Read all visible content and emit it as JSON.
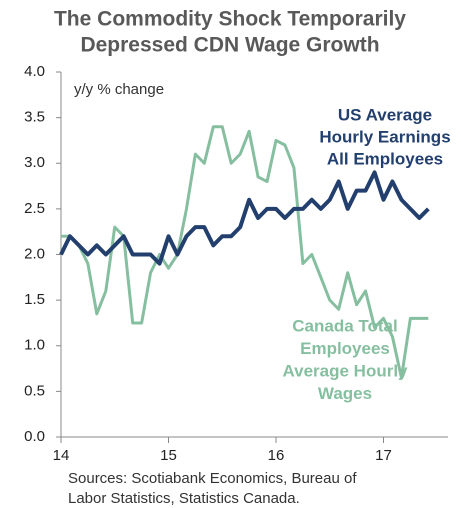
{
  "chart_data": {
    "type": "line",
    "title": [
      "The Commodity Shock Temporarily",
      "Depressed CDN Wage Growth"
    ],
    "ylabel": "y/y % change",
    "x": [
      14,
      14.083,
      14.167,
      14.25,
      14.333,
      14.417,
      14.5,
      14.583,
      14.667,
      14.75,
      14.833,
      14.917,
      15,
      15.083,
      15.167,
      15.25,
      15.333,
      15.417,
      15.5,
      15.583,
      15.667,
      15.75,
      15.833,
      15.917,
      16,
      16.083,
      16.167,
      16.25,
      16.333,
      16.417,
      16.5,
      16.583,
      16.667,
      16.75,
      16.833,
      16.917,
      17,
      17.083,
      17.167,
      17.25,
      17.333,
      17.417
    ],
    "series": [
      {
        "name": [
          "US Average",
          "Hourly Earnings",
          "All Employees"
        ],
        "color": "#223f6d",
        "values": [
          2.0,
          2.2,
          2.1,
          2.0,
          2.1,
          2.0,
          2.1,
          2.2,
          2.0,
          2.0,
          2.0,
          1.9,
          2.2,
          2.0,
          2.2,
          2.3,
          2.3,
          2.1,
          2.2,
          2.2,
          2.3,
          2.6,
          2.4,
          2.5,
          2.5,
          2.4,
          2.5,
          2.5,
          2.6,
          2.5,
          2.6,
          2.8,
          2.5,
          2.7,
          2.7,
          2.9,
          2.6,
          2.8,
          2.6,
          2.5,
          2.4,
          2.5
        ]
      },
      {
        "name": [
          "Canada Total",
          "Employees",
          "Average Hourly",
          "Wages"
        ],
        "color": "#86bfa0",
        "values": [
          2.2,
          2.2,
          2.1,
          1.9,
          1.35,
          1.6,
          2.3,
          2.2,
          1.25,
          1.25,
          1.8,
          2.0,
          1.85,
          2.0,
          2.5,
          3.1,
          3.0,
          3.4,
          3.4,
          3.0,
          3.1,
          3.35,
          2.85,
          2.8,
          3.25,
          3.2,
          2.95,
          1.9,
          2.0,
          1.75,
          1.5,
          1.4,
          1.8,
          1.45,
          1.6,
          1.2,
          1.3,
          1.1,
          0.65,
          1.3,
          1.3,
          1.3
        ]
      }
    ],
    "xlim": [
      14,
      17.6
    ],
    "xticks": [
      14,
      15,
      16,
      17
    ],
    "ylim": [
      0,
      4
    ],
    "yticks": [
      {
        "value": 0,
        "label": "0.0"
      },
      {
        "value": 0.5,
        "label": "0.5"
      },
      {
        "value": 1,
        "label": "1.0"
      },
      {
        "value": 1.5,
        "label": "1.5"
      },
      {
        "value": 2,
        "label": "2.0"
      },
      {
        "value": 2.5,
        "label": "2.5"
      },
      {
        "value": 3,
        "label": "3.0"
      },
      {
        "value": 3.5,
        "label": "3.5"
      },
      {
        "value": 4,
        "label": "4.0"
      }
    ],
    "grid": false,
    "source": [
      "Sources: Scotiabank Economics, Bureau of",
      "Labor Statistics, Statistics Canada."
    ]
  }
}
